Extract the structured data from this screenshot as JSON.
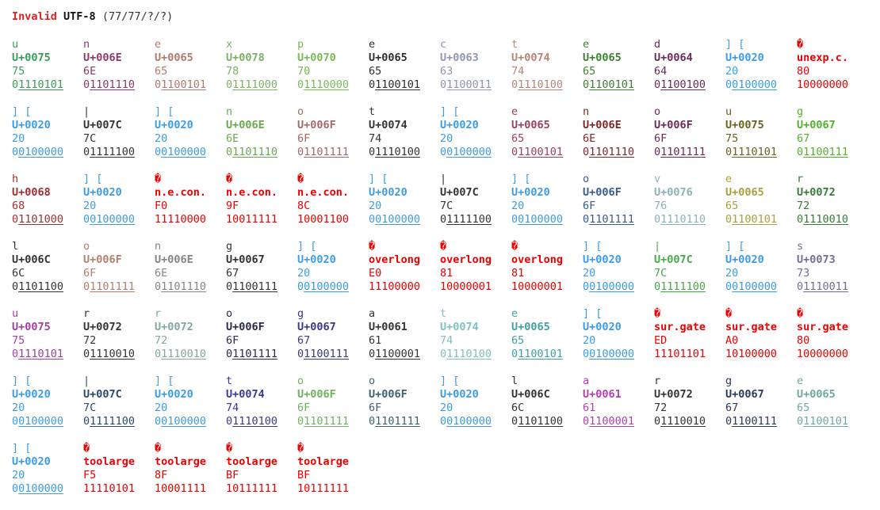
{
  "header": {
    "invalid": "Invalid",
    "encoding": "UTF-8",
    "counts": "(77/77/?/?)"
  },
  "cells": [
    {
      "k": "ok",
      "ch": "u",
      "cp": "U+0075",
      "hex": "75",
      "lead": "0",
      "rest": "1110101",
      "color": "#3c9a5a"
    },
    {
      "k": "ok",
      "ch": "n",
      "cp": "U+006E",
      "hex": "6E",
      "lead": "0",
      "rest": "1101110",
      "color": "#8b3a6b"
    },
    {
      "k": "ok",
      "ch": "e",
      "cp": "U+0065",
      "hex": "65",
      "lead": "0",
      "rest": "1100101",
      "color": "#b07a6e"
    },
    {
      "k": "ok",
      "ch": "x",
      "cp": "U+0078",
      "hex": "78",
      "lead": "0",
      "rest": "1111000",
      "color": "#7fb069"
    },
    {
      "k": "ok",
      "ch": "p",
      "cp": "U+0070",
      "hex": "70",
      "lead": "0",
      "rest": "1110000",
      "color": "#78b85a"
    },
    {
      "k": "ok",
      "ch": "e",
      "cp": "U+0065",
      "hex": "65",
      "lead": "0",
      "rest": "1100101",
      "color": "#2e2e2e"
    },
    {
      "k": "ok",
      "ch": "c",
      "cp": "U+0063",
      "hex": "63",
      "lead": "0",
      "rest": "1100011",
      "color": "#8f95b2"
    },
    {
      "k": "ok",
      "ch": "t",
      "cp": "U+0074",
      "hex": "74",
      "lead": "0",
      "rest": "1110100",
      "color": "#b5877b"
    },
    {
      "k": "ok",
      "ch": "e",
      "cp": "U+0065",
      "hex": "65",
      "lead": "0",
      "rest": "1100101",
      "color": "#3f7f33"
    },
    {
      "k": "ok",
      "ch": "d",
      "cp": "U+0064",
      "hex": "64",
      "lead": "0",
      "rest": "1100100",
      "color": "#6b2a58"
    },
    {
      "k": "ok",
      "ch": "] [",
      "cp": "U+0020",
      "hex": "20",
      "lead": "0",
      "rest": "0100000",
      "color": "#3d9ce0"
    },
    {
      "k": "err",
      "ch": "�",
      "cp": "unexp.c.",
      "hex": "80",
      "lead": "",
      "rest": "10000000",
      "color": "#ee0000"
    },
    {
      "k": "ok",
      "ch": "] [",
      "cp": "U+0020",
      "hex": "20",
      "lead": "0",
      "rest": "0100000",
      "color": "#3d9ce0"
    },
    {
      "k": "ok",
      "ch": "|",
      "cp": "U+007C",
      "hex": "7C",
      "lead": "0",
      "rest": "1111100",
      "color": "#333333"
    },
    {
      "k": "ok",
      "ch": "] [",
      "cp": "U+0020",
      "hex": "20",
      "lead": "0",
      "rest": "0100000",
      "color": "#3d9ce0"
    },
    {
      "k": "ok",
      "ch": "n",
      "cp": "U+006E",
      "hex": "6E",
      "lead": "0",
      "rest": "1101110",
      "color": "#6aa84f"
    },
    {
      "k": "ok",
      "ch": "o",
      "cp": "U+006F",
      "hex": "6F",
      "lead": "0",
      "rest": "1101111",
      "color": "#a56a6a"
    },
    {
      "k": "ok",
      "ch": "t",
      "cp": "U+0074",
      "hex": "74",
      "lead": "0",
      "rest": "1110100",
      "color": "#333333"
    },
    {
      "k": "ok",
      "ch": "] [",
      "cp": "U+0020",
      "hex": "20",
      "lead": "0",
      "rest": "0100000",
      "color": "#3d9ce0"
    },
    {
      "k": "ok",
      "ch": "e",
      "cp": "U+0065",
      "hex": "65",
      "lead": "0",
      "rest": "1100101",
      "color": "#9a4060"
    },
    {
      "k": "ok",
      "ch": "n",
      "cp": "U+006E",
      "hex": "6E",
      "lead": "0",
      "rest": "1101110",
      "color": "#7a2a2a"
    },
    {
      "k": "ok",
      "ch": "o",
      "cp": "U+006F",
      "hex": "6F",
      "lead": "0",
      "rest": "1101111",
      "color": "#6a2a5a"
    },
    {
      "k": "ok",
      "ch": "u",
      "cp": "U+0075",
      "hex": "75",
      "lead": "0",
      "rest": "1110101",
      "color": "#6e6020"
    },
    {
      "k": "ok",
      "ch": "g",
      "cp": "U+0067",
      "hex": "67",
      "lead": "0",
      "rest": "1100111",
      "color": "#55b02a"
    },
    {
      "k": "ok",
      "ch": "h",
      "cp": "U+0068",
      "hex": "68",
      "lead": "0",
      "rest": "1101000",
      "color": "#9a3030"
    },
    {
      "k": "ok",
      "ch": "] [",
      "cp": "U+0020",
      "hex": "20",
      "lead": "0",
      "rest": "0100000",
      "color": "#3d9ce0"
    },
    {
      "k": "err",
      "ch": "�",
      "cp": "n.e.con.",
      "hex": "F0",
      "lead": "",
      "rest": "11110000",
      "color": "#ee0000"
    },
    {
      "k": "err",
      "ch": "�",
      "cp": "n.e.con.",
      "hex": "9F",
      "lead": "",
      "rest": "10011111",
      "color": "#ee0000"
    },
    {
      "k": "err",
      "ch": "�",
      "cp": "n.e.con.",
      "hex": "8C",
      "lead": "",
      "rest": "10001100",
      "color": "#ee0000"
    },
    {
      "k": "ok",
      "ch": "] [",
      "cp": "U+0020",
      "hex": "20",
      "lead": "0",
      "rest": "0100000",
      "color": "#3d9ce0"
    },
    {
      "k": "ok",
      "ch": "|",
      "cp": "U+007C",
      "hex": "7C",
      "lead": "0",
      "rest": "1111100",
      "color": "#333333"
    },
    {
      "k": "ok",
      "ch": "] [",
      "cp": "U+0020",
      "hex": "20",
      "lead": "0",
      "rest": "0100000",
      "color": "#3d9ce0"
    },
    {
      "k": "ok",
      "ch": "o",
      "cp": "U+006F",
      "hex": "6F",
      "lead": "0",
      "rest": "1101111",
      "color": "#3a5a8a"
    },
    {
      "k": "ok",
      "ch": "v",
      "cp": "U+0076",
      "hex": "76",
      "lead": "0",
      "rest": "1110110",
      "color": "#8ab2b8"
    },
    {
      "k": "ok",
      "ch": "e",
      "cp": "U+0065",
      "hex": "65",
      "lead": "0",
      "rest": "1100101",
      "color": "#a8a040"
    },
    {
      "k": "ok",
      "ch": "r",
      "cp": "U+0072",
      "hex": "72",
      "lead": "0",
      "rest": "1110010",
      "color": "#3a7a3a"
    },
    {
      "k": "ok",
      "ch": "l",
      "cp": "U+006C",
      "hex": "6C",
      "lead": "0",
      "rest": "1101100",
      "color": "#333333"
    },
    {
      "k": "ok",
      "ch": "o",
      "cp": "U+006F",
      "hex": "6F",
      "lead": "0",
      "rest": "1101111",
      "color": "#b08070"
    },
    {
      "k": "ok",
      "ch": "n",
      "cp": "U+006E",
      "hex": "6E",
      "lead": "0",
      "rest": "1101110",
      "color": "#858585"
    },
    {
      "k": "ok",
      "ch": "g",
      "cp": "U+0067",
      "hex": "67",
      "lead": "0",
      "rest": "1100111",
      "color": "#333333"
    },
    {
      "k": "ok",
      "ch": "] [",
      "cp": "U+0020",
      "hex": "20",
      "lead": "0",
      "rest": "0100000",
      "color": "#3d9ce0"
    },
    {
      "k": "err",
      "ch": "�",
      "cp": "overlong",
      "hex": "E0",
      "lead": "",
      "rest": "11100000",
      "color": "#ee0000"
    },
    {
      "k": "err",
      "ch": "�",
      "cp": "overlong",
      "hex": "81",
      "lead": "",
      "rest": "10000001",
      "color": "#ee0000"
    },
    {
      "k": "err",
      "ch": "�",
      "cp": "overlong",
      "hex": "81",
      "lead": "",
      "rest": "10000001",
      "color": "#ee0000"
    },
    {
      "k": "ok",
      "ch": "] [",
      "cp": "U+0020",
      "hex": "20",
      "lead": "0",
      "rest": "0100000",
      "color": "#3d9ce0"
    },
    {
      "k": "ok",
      "ch": "|",
      "cp": "U+007C",
      "hex": "7C",
      "lead": "0",
      "rest": "1111100",
      "color": "#4aa84a"
    },
    {
      "k": "ok",
      "ch": "] [",
      "cp": "U+0020",
      "hex": "20",
      "lead": "0",
      "rest": "0100000",
      "color": "#3d9ce0"
    },
    {
      "k": "ok",
      "ch": "s",
      "cp": "U+0073",
      "hex": "73",
      "lead": "0",
      "rest": "1110011",
      "color": "#707090"
    },
    {
      "k": "ok",
      "ch": "u",
      "cp": "U+0075",
      "hex": "75",
      "lead": "0",
      "rest": "1110101",
      "color": "#a040a0"
    },
    {
      "k": "ok",
      "ch": "r",
      "cp": "U+0072",
      "hex": "72",
      "lead": "0",
      "rest": "1110010",
      "color": "#333333"
    },
    {
      "k": "ok",
      "ch": "r",
      "cp": "U+0072",
      "hex": "72",
      "lead": "0",
      "rest": "1110010",
      "color": "#80a8a0"
    },
    {
      "k": "ok",
      "ch": "o",
      "cp": "U+006F",
      "hex": "6F",
      "lead": "0",
      "rest": "1101111",
      "color": "#2a2a4a"
    },
    {
      "k": "ok",
      "ch": "g",
      "cp": "U+0067",
      "hex": "67",
      "lead": "0",
      "rest": "1100111",
      "color": "#3a3a80"
    },
    {
      "k": "ok",
      "ch": "a",
      "cp": "U+0061",
      "hex": "61",
      "lead": "0",
      "rest": "1100001",
      "color": "#333333"
    },
    {
      "k": "ok",
      "ch": "t",
      "cp": "U+0074",
      "hex": "74",
      "lead": "0",
      "rest": "1110100",
      "color": "#80c0c0"
    },
    {
      "k": "ok",
      "ch": "e",
      "cp": "U+0065",
      "hex": "65",
      "lead": "0",
      "rest": "1100101",
      "color": "#40a0a0"
    },
    {
      "k": "ok",
      "ch": "] [",
      "cp": "U+0020",
      "hex": "20",
      "lead": "0",
      "rest": "0100000",
      "color": "#3d9ce0"
    },
    {
      "k": "err",
      "ch": "�",
      "cp": "sur.gate",
      "hex": "ED",
      "lead": "",
      "rest": "11101101",
      "color": "#ee0000"
    },
    {
      "k": "err",
      "ch": "�",
      "cp": "sur.gate",
      "hex": "A0",
      "lead": "",
      "rest": "10100000",
      "color": "#ee0000"
    },
    {
      "k": "err",
      "ch": "�",
      "cp": "sur.gate",
      "hex": "80",
      "lead": "",
      "rest": "10000000",
      "color": "#ee0000"
    },
    {
      "k": "ok",
      "ch": "] [",
      "cp": "U+0020",
      "hex": "20",
      "lead": "0",
      "rest": "0100000",
      "color": "#3d9ce0"
    },
    {
      "k": "ok",
      "ch": "|",
      "cp": "U+007C",
      "hex": "7C",
      "lead": "0",
      "rest": "1111100",
      "color": "#2a4a6a"
    },
    {
      "k": "ok",
      "ch": "] [",
      "cp": "U+0020",
      "hex": "20",
      "lead": "0",
      "rest": "0100000",
      "color": "#3d9ce0"
    },
    {
      "k": "ok",
      "ch": "t",
      "cp": "U+0074",
      "hex": "74",
      "lead": "0",
      "rest": "1110100",
      "color": "#3a3a8a"
    },
    {
      "k": "ok",
      "ch": "o",
      "cp": "U+006F",
      "hex": "6F",
      "lead": "0",
      "rest": "1101111",
      "color": "#70b060"
    },
    {
      "k": "ok",
      "ch": "o",
      "cp": "U+006F",
      "hex": "6F",
      "lead": "0",
      "rest": "1101111",
      "color": "#406070"
    },
    {
      "k": "ok",
      "ch": "] [",
      "cp": "U+0020",
      "hex": "20",
      "lead": "0",
      "rest": "0100000",
      "color": "#3d9ce0"
    },
    {
      "k": "ok",
      "ch": "l",
      "cp": "U+006C",
      "hex": "6C",
      "lead": "0",
      "rest": "1101100",
      "color": "#333333"
    },
    {
      "k": "ok",
      "ch": "a",
      "cp": "U+0061",
      "hex": "61",
      "lead": "0",
      "rest": "1100001",
      "color": "#b040b0"
    },
    {
      "k": "ok",
      "ch": "r",
      "cp": "U+0072",
      "hex": "72",
      "lead": "0",
      "rest": "1110010",
      "color": "#333333"
    },
    {
      "k": "ok",
      "ch": "g",
      "cp": "U+0067",
      "hex": "67",
      "lead": "0",
      "rest": "1100111",
      "color": "#2a3a5a"
    },
    {
      "k": "ok",
      "ch": "e",
      "cp": "U+0065",
      "hex": "65",
      "lead": "0",
      "rest": "1100101",
      "color": "#70a8a0"
    },
    {
      "k": "ok",
      "ch": "] [",
      "cp": "U+0020",
      "hex": "20",
      "lead": "0",
      "rest": "0100000",
      "color": "#3d9ce0"
    },
    {
      "k": "err",
      "ch": "�",
      "cp": "toolarge",
      "hex": "F5",
      "lead": "",
      "rest": "11110101",
      "color": "#ee0000"
    },
    {
      "k": "err",
      "ch": "�",
      "cp": "toolarge",
      "hex": "8F",
      "lead": "",
      "rest": "10001111",
      "color": "#ee0000"
    },
    {
      "k": "err",
      "ch": "�",
      "cp": "toolarge",
      "hex": "BF",
      "lead": "",
      "rest": "10111111",
      "color": "#ee0000"
    },
    {
      "k": "err",
      "ch": "�",
      "cp": "toolarge",
      "hex": "BF",
      "lead": "",
      "rest": "10111111",
      "color": "#ee0000"
    }
  ]
}
